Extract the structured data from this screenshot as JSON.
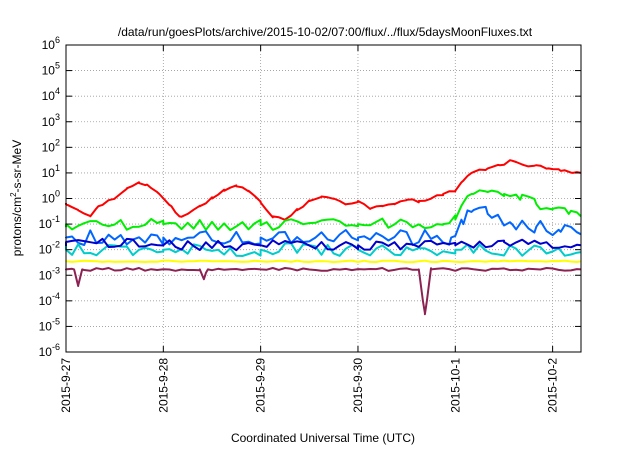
{
  "chart_data": {
    "type": "line",
    "title": "/data/run/goesPlots/archive/2015-10-02/07:00/flux/../flux/5daysMoonFluxes.txt",
    "xlabel": "Coordinated Universal Time (UTC)",
    "ylabel_main": "protons/cm",
    "ylabel_sup": "2",
    "ylabel_rest": "-s-sr-MeV",
    "yscale": "log",
    "ylim_exp": [
      -6,
      6
    ],
    "xlim": [
      "2015-09-27T00:00",
      "2015-10-02T07:00"
    ],
    "x_ticks": [
      {
        "label": "2015-9-27",
        "t": "2015-09-27T00:00"
      },
      {
        "label": "2015-9-28",
        "t": "2015-09-28T00:00"
      },
      {
        "label": "2015-9-29",
        "t": "2015-09-29T00:00"
      },
      {
        "label": "2015-9-30",
        "t": "2015-09-30T00:00"
      },
      {
        "label": "2015-10-1",
        "t": "2015-10-01T00:00"
      },
      {
        "label": "2015-10-2",
        "t": "2015-10-02T00:00"
      }
    ],
    "y_ticks": [
      {
        "base": "10",
        "exp": "6",
        "value": 1000000.0
      },
      {
        "base": "10",
        "exp": "5",
        "value": 100000.0
      },
      {
        "base": "10",
        "exp": "4",
        "value": 10000.0
      },
      {
        "base": "10",
        "exp": "3",
        "value": 1000.0
      },
      {
        "base": "10",
        "exp": "2",
        "value": 100.0
      },
      {
        "base": "10",
        "exp": "1",
        "value": 10.0
      },
      {
        "base": "10",
        "exp": "0",
        "value": 1.0
      },
      {
        "base": "10",
        "exp": "-1",
        "value": 0.1
      },
      {
        "base": "10",
        "exp": "-2",
        "value": 0.01
      },
      {
        "base": "10",
        "exp": "-3",
        "value": 0.001
      },
      {
        "base": "10",
        "exp": "-4",
        "value": 0.0001
      },
      {
        "base": "10",
        "exp": "-5",
        "value": 1e-05
      },
      {
        "base": "10",
        "exp": "-6",
        "value": 1e-06
      }
    ],
    "grid": true,
    "legend": "none",
    "series": [
      {
        "color": "#ff0000",
        "width": 2,
        "jitter": 0.05,
        "points": [
          [
            "2015-09-27T00:00",
            0.6
          ],
          [
            "2015-09-27T03:00",
            0.35
          ],
          [
            "2015-09-27T06:00",
            0.2
          ],
          [
            "2015-09-27T08:00",
            0.5
          ],
          [
            "2015-09-27T12:00",
            1.0
          ],
          [
            "2015-09-27T15:00",
            2.5
          ],
          [
            "2015-09-27T18:00",
            4.0
          ],
          [
            "2015-09-27T20:00",
            3.5
          ],
          [
            "2015-09-27T23:00",
            1.5
          ],
          [
            "2015-09-28T02:00",
            0.5
          ],
          [
            "2015-09-28T04:00",
            0.2
          ],
          [
            "2015-09-28T06:00",
            0.25
          ],
          [
            "2015-09-28T09:00",
            0.5
          ],
          [
            "2015-09-28T12:00",
            1.0
          ],
          [
            "2015-09-28T15:00",
            2.0
          ],
          [
            "2015-09-28T18:00",
            3.0
          ],
          [
            "2015-09-28T21:00",
            2.0
          ],
          [
            "2015-09-29T00:00",
            0.7
          ],
          [
            "2015-09-29T03:00",
            0.2
          ],
          [
            "2015-09-29T06:00",
            0.15
          ],
          [
            "2015-09-29T09:00",
            0.35
          ],
          [
            "2015-09-29T12:00",
            0.8
          ],
          [
            "2015-09-29T15:00",
            1.2
          ],
          [
            "2015-09-29T18:00",
            1.0
          ],
          [
            "2015-09-29T21:00",
            0.6
          ],
          [
            "2015-09-30T00:00",
            0.8
          ],
          [
            "2015-09-30T03:00",
            0.4
          ],
          [
            "2015-09-30T06:00",
            0.5
          ],
          [
            "2015-09-30T09:00",
            0.6
          ],
          [
            "2015-09-30T12:00",
            0.9
          ],
          [
            "2015-09-30T15:00",
            0.8
          ],
          [
            "2015-09-30T18:00",
            1.0
          ],
          [
            "2015-09-30T21:00",
            1.5
          ],
          [
            "2015-10-01T00:00",
            2.0
          ],
          [
            "2015-10-01T02:00",
            5.0
          ],
          [
            "2015-10-01T04:00",
            10
          ],
          [
            "2015-10-01T08:00",
            15
          ],
          [
            "2015-10-01T11:00",
            20
          ],
          [
            "2015-10-01T14:00",
            30
          ],
          [
            "2015-10-01T17:00",
            20
          ],
          [
            "2015-10-01T20:00",
            20
          ],
          [
            "2015-10-01T23:00",
            15
          ],
          [
            "2015-10-02T02:00",
            12
          ],
          [
            "2015-10-02T05:00",
            10
          ],
          [
            "2015-10-02T07:00",
            10
          ]
        ]
      },
      {
        "color": "#00ee00",
        "width": 2,
        "jitter": 0.22,
        "points": [
          [
            "2015-09-27T00:00",
            0.1
          ],
          [
            "2015-09-28T00:00",
            0.1
          ],
          [
            "2015-09-29T00:00",
            0.09
          ],
          [
            "2015-09-30T00:00",
            0.1
          ],
          [
            "2015-09-30T21:00",
            0.1
          ],
          [
            "2015-10-01T00:00",
            0.15
          ],
          [
            "2015-10-01T02:00",
            0.7
          ],
          [
            "2015-10-01T04:00",
            1.5
          ],
          [
            "2015-10-01T08:00",
            1.8
          ],
          [
            "2015-10-01T12:00",
            1.5
          ],
          [
            "2015-10-01T16:00",
            0.9
          ],
          [
            "2015-10-01T20:00",
            0.6
          ],
          [
            "2015-10-02T00:00",
            0.4
          ],
          [
            "2015-10-02T04:00",
            0.25
          ],
          [
            "2015-10-02T07:00",
            0.2
          ]
        ]
      },
      {
        "color": "#0066ff",
        "width": 2,
        "jitter": 0.3,
        "points": [
          [
            "2015-09-27T00:00",
            0.03
          ],
          [
            "2015-09-28T00:00",
            0.03
          ],
          [
            "2015-09-29T00:00",
            0.03
          ],
          [
            "2015-09-30T00:00",
            0.03
          ],
          [
            "2015-09-30T23:00",
            0.03
          ],
          [
            "2015-10-01T02:00",
            0.1
          ],
          [
            "2015-10-01T04:00",
            0.3
          ],
          [
            "2015-10-01T08:00",
            0.25
          ],
          [
            "2015-10-01T14:00",
            0.1
          ],
          [
            "2015-10-01T20:00",
            0.08
          ],
          [
            "2015-10-02T02:00",
            0.05
          ],
          [
            "2015-10-02T07:00",
            0.04
          ]
        ]
      },
      {
        "color": "#00cccc",
        "width": 2,
        "jitter": 0.25,
        "points": [
          [
            "2015-09-27T00:00",
            0.01
          ],
          [
            "2015-09-28T00:00",
            0.01
          ],
          [
            "2015-09-29T00:00",
            0.01
          ],
          [
            "2015-09-30T00:00",
            0.01
          ],
          [
            "2015-10-01T00:00",
            0.01
          ],
          [
            "2015-10-02T07:00",
            0.008
          ]
        ]
      },
      {
        "color": "#0000cc",
        "width": 2,
        "jitter": 0.2,
        "points": [
          [
            "2015-09-27T00:00",
            0.02
          ],
          [
            "2015-09-28T00:00",
            0.015
          ],
          [
            "2015-09-29T00:00",
            0.015
          ],
          [
            "2015-09-30T00:00",
            0.015
          ],
          [
            "2015-10-01T00:00",
            0.015
          ],
          [
            "2015-10-01T12:00",
            0.02
          ],
          [
            "2015-10-02T07:00",
            0.015
          ]
        ]
      },
      {
        "color": "#ffff00",
        "width": 2,
        "jitter": 0.03,
        "points": [
          [
            "2015-09-27T00:00",
            0.0035
          ],
          [
            "2015-10-02T07:00",
            0.0035
          ]
        ]
      },
      {
        "color": "#8b2252",
        "width": 2,
        "jitter": 0.06,
        "points": [
          [
            "2015-09-27T00:00",
            0.0017
          ],
          [
            "2015-09-27T02:00",
            0.0017
          ],
          [
            "2015-09-27T03:00",
            0.0004
          ],
          [
            "2015-09-27T04:00",
            0.0017
          ],
          [
            "2015-09-28T09:00",
            0.0017
          ],
          [
            "2015-09-28T10:00",
            0.0007
          ],
          [
            "2015-09-28T11:00",
            0.0017
          ],
          [
            "2015-09-30T15:00",
            0.0017
          ],
          [
            "2015-09-30T16:00",
            0.0001
          ],
          [
            "2015-09-30T16:30",
            3e-05
          ],
          [
            "2015-09-30T17:00",
            0.0001
          ],
          [
            "2015-09-30T18:00",
            0.0017
          ],
          [
            "2015-10-02T07:00",
            0.0017
          ]
        ]
      }
    ]
  }
}
